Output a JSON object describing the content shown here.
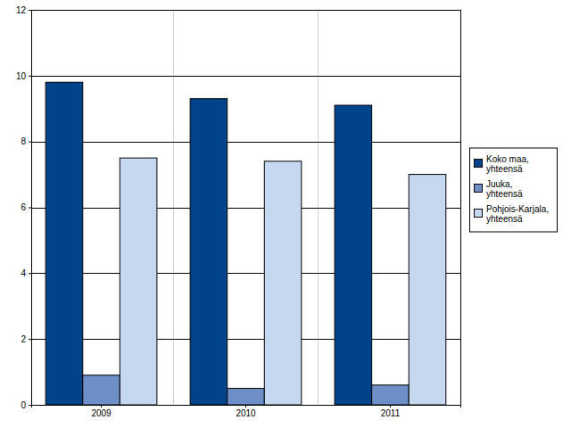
{
  "chart_data": {
    "type": "bar",
    "categories": [
      "2009",
      "2010",
      "2011"
    ],
    "series": [
      {
        "name": "Koko maa, yhteensä",
        "color": "#00438a",
        "values": [
          9.8,
          9.3,
          9.1
        ]
      },
      {
        "name": "Juuka, yhteensä",
        "color": "#6f8fc8",
        "values": [
          0.9,
          0.5,
          0.6
        ]
      },
      {
        "name": "Pohjois-Karjala, yhteensä",
        "color": "#c6d7f0",
        "values": [
          7.5,
          7.4,
          7.0
        ]
      }
    ],
    "ylim": [
      0,
      12
    ],
    "yticks": [
      0,
      2,
      4,
      6,
      8,
      10,
      12
    ],
    "grid": true,
    "legend": "right"
  }
}
